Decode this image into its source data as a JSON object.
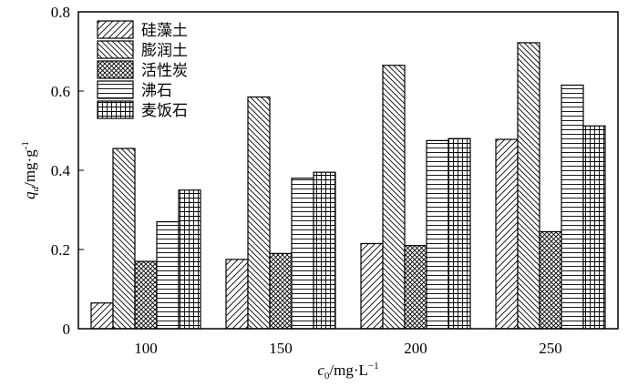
{
  "chart_data": {
    "type": "bar",
    "xlabel": "c0/mg·L-1",
    "xlabel_parts": {
      "var": "c",
      "sub": "0",
      "unit": "/mg·L",
      "sup": "−1"
    },
    "ylabel": "qd/mg·g-1",
    "ylabel_parts": {
      "var": "q",
      "sub": "d",
      "unit": "/mg·g",
      "sup": "-1"
    },
    "categories": [
      "100",
      "150",
      "200",
      "250"
    ],
    "ylim": [
      0,
      0.8
    ],
    "yticks": [
      "0",
      "0.2",
      "0.4",
      "0.6",
      "0.8"
    ],
    "ytick_values": [
      0,
      0.2,
      0.4,
      0.6,
      0.8
    ],
    "grid": false,
    "legend_position": "top-left",
    "series": [
      {
        "name": "硅藻土",
        "pattern": "diagonal-forward",
        "values": [
          0.065,
          0.175,
          0.215,
          0.478
        ]
      },
      {
        "name": "膨润土",
        "pattern": "diagonal-backward",
        "values": [
          0.455,
          0.585,
          0.665,
          0.722
        ]
      },
      {
        "name": "活性炭",
        "pattern": "crosshatch",
        "values": [
          0.17,
          0.19,
          0.21,
          0.245
        ]
      },
      {
        "name": "沸石",
        "pattern": "horizontal",
        "values": [
          0.27,
          0.38,
          0.475,
          0.615
        ]
      },
      {
        "name": "麦饭石",
        "pattern": "grid",
        "values": [
          0.35,
          0.395,
          0.48,
          0.512
        ]
      }
    ]
  }
}
